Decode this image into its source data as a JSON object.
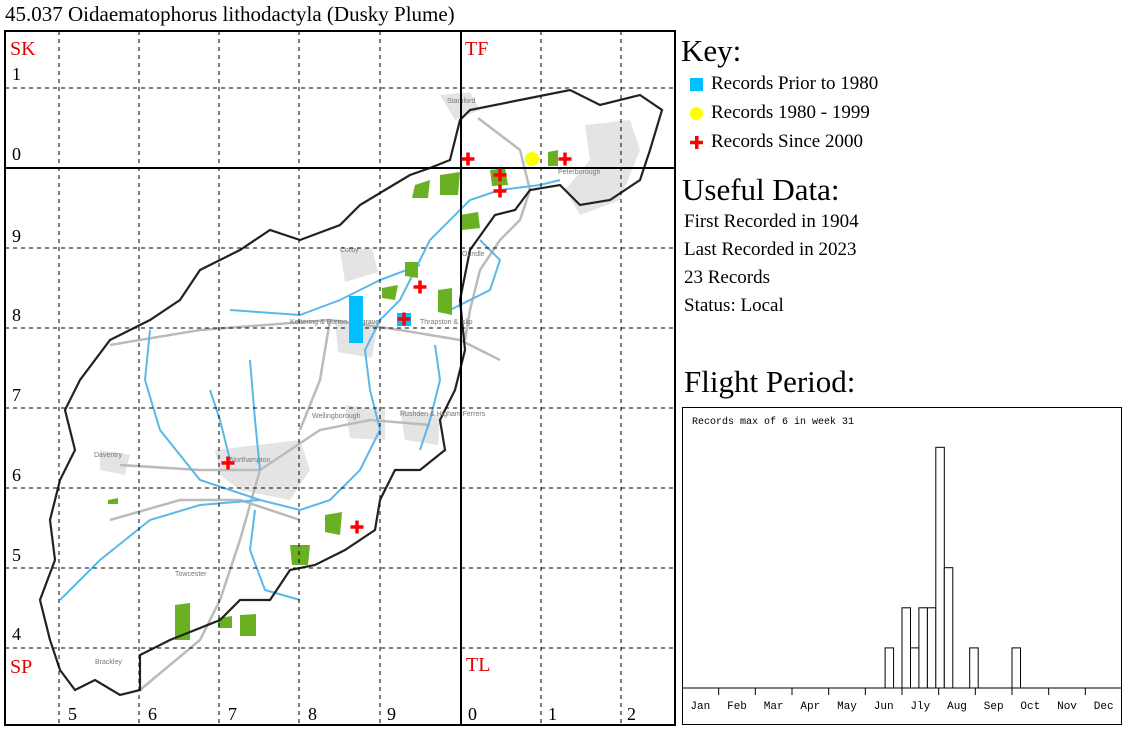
{
  "title": "45.037 Oidaematophorus lithodactyla (Dusky Plume)",
  "map": {
    "square_labels": [
      "SK",
      "TF",
      "SP",
      "TL"
    ],
    "northing_labels": [
      "1",
      "0",
      "9",
      "8",
      "7",
      "6",
      "5",
      "4"
    ],
    "easting_labels": [
      "5",
      "6",
      "7",
      "8",
      "9",
      "0",
      "1",
      "2"
    ],
    "places": [
      "Stamford",
      "Peterborough",
      "Corby",
      "Oundle",
      "Kettering & Burton Seagrave",
      "Thrapston & Islip",
      "Wellingborough",
      "Rushden & Higham Ferrers",
      "Northampton",
      "Daventry",
      "Towcester",
      "Brackley"
    ],
    "colors": {
      "prior_1980": "#00bfff",
      "1980_1999": "#ffff00",
      "since_2000": "#ff0000",
      "label": "#e00000",
      "woodland": "#6ab023",
      "river": "#5bb8e8",
      "road": "#bbbbbb",
      "urban": "#e4e4e4"
    }
  },
  "key": {
    "heading": "Key:",
    "items": [
      {
        "label": "Records Prior to 1980",
        "symbol": "square-icon"
      },
      {
        "label": "Records 1980 - 1999",
        "symbol": "circle-icon"
      },
      {
        "label": "Records Since 2000",
        "symbol": "cross-icon"
      }
    ]
  },
  "useful": {
    "heading": "Useful Data:",
    "first": "First Recorded in 1904",
    "last": "Last Recorded in 2023",
    "count": "23 Records",
    "status": "Status: Local"
  },
  "flight": {
    "heading": "Flight Period:"
  },
  "chart_data": {
    "type": "bar",
    "title": "Records max of 6 in week 31",
    "x_unit": "week",
    "xlim": [
      1,
      52
    ],
    "ylim": [
      0,
      6
    ],
    "month_labels": [
      "Jan",
      "Feb",
      "Mar",
      "Apr",
      "May",
      "Jun",
      "Jly",
      "Aug",
      "Sep",
      "Oct",
      "Nov",
      "Dec"
    ],
    "weeks": [
      25,
      27,
      28,
      29,
      30,
      31,
      32,
      35,
      40
    ],
    "values": [
      1,
      2,
      1,
      2,
      2,
      6,
      3,
      1,
      1
    ]
  }
}
